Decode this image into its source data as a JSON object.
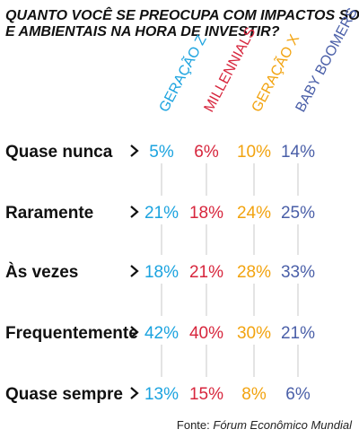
{
  "colors": {
    "gen_z": "#1ba3df",
    "millennials": "#d7263d",
    "gen_x": "#f2a30f",
    "baby_boomers": "#4a5fa8"
  },
  "chart_data": {
    "type": "table",
    "title_lines": [
      "QUANTO VOCÊ SE PREOCUPA COM IMPACTOS SOCIAIS",
      "E AMBIENTAIS NA HORA DE INVESTIR?"
    ],
    "series": [
      {
        "name": "GERAÇÃO Z",
        "color_key": "gen_z",
        "values": [
          5,
          21,
          18,
          42,
          13
        ]
      },
      {
        "name": "MILLENNIALS",
        "color_key": "millennials",
        "values": [
          6,
          18,
          21,
          40,
          15
        ]
      },
      {
        "name": "GERAÇÃO X",
        "color_key": "gen_x",
        "values": [
          10,
          24,
          28,
          30,
          8
        ]
      },
      {
        "name": "BABY BOOMERS",
        "color_key": "baby_boomers",
        "values": [
          14,
          25,
          33,
          21,
          6
        ]
      }
    ],
    "categories": [
      "Quase nunca",
      "Raramente",
      "Às vezes",
      "Frequentemente",
      "Quase sempre"
    ],
    "unit": "%"
  },
  "source": {
    "prefix": "Fonte: ",
    "name": "Fórum Econômico Mundial"
  }
}
